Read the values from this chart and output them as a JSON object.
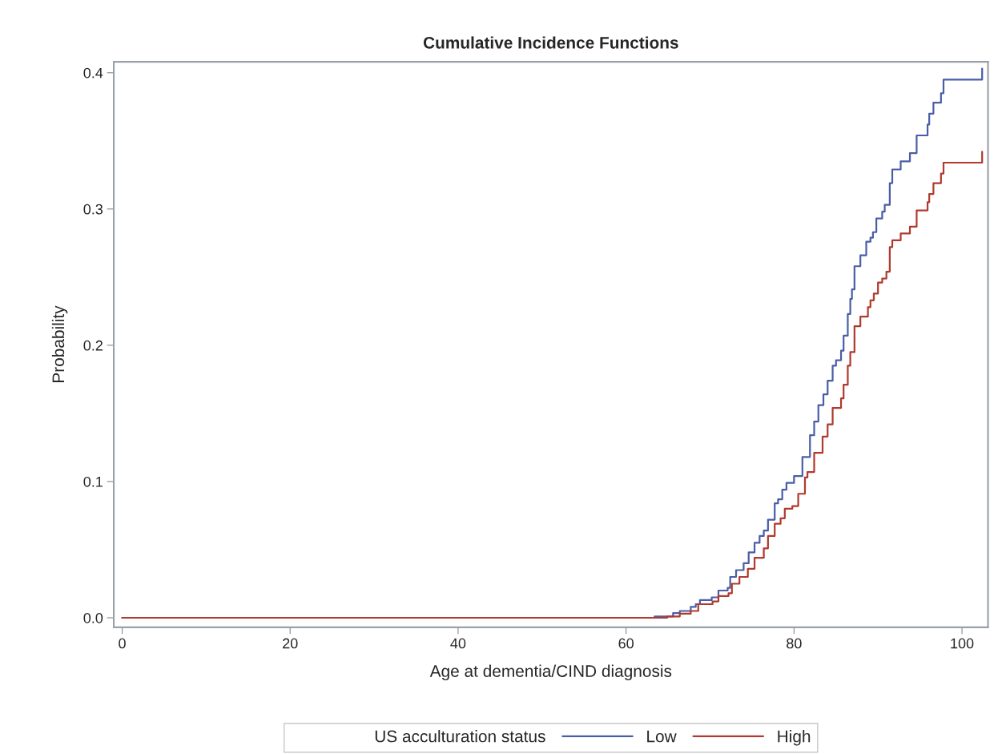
{
  "chart_data": {
    "type": "step",
    "title": "Cumulative Incidence Functions",
    "xlabel": "Age at dementia/CIND diagnosis",
    "ylabel": "Probability",
    "legend_title": "US acculturation status",
    "xlim": [
      -1,
      103.1
    ],
    "ylim": [
      -0.007,
      0.408
    ],
    "xticks": [
      0,
      20,
      40,
      60,
      80,
      100
    ],
    "yticks": [
      {
        "value": 0,
        "label": "0.0"
      },
      {
        "value": 0.1,
        "label": "0.1"
      },
      {
        "value": 0.2,
        "label": "0.2"
      },
      {
        "value": 0.3,
        "label": "0.3"
      },
      {
        "value": 0.4,
        "label": "0.4"
      }
    ],
    "grid": false,
    "legend": "bottom",
    "line_style": "solid",
    "marker": "none",
    "series": [
      {
        "name": "Low",
        "color": "#4a5ea8",
        "x": [
          0,
          63.4,
          65.6,
          66.4,
          67.7,
          68.3,
          68.8,
          70.2,
          71.0,
          72.1,
          72.4,
          73.1,
          74.0,
          74.6,
          75.3,
          75.9,
          76.4,
          76.9,
          77.7,
          78.1,
          78.6,
          79.1,
          80.0,
          81.0,
          81.9,
          82.4,
          82.9,
          83.5,
          84.0,
          84.6,
          85.0,
          85.6,
          85.9,
          86.4,
          86.7,
          86.9,
          87.2,
          87.9,
          88.6,
          89.1,
          89.4,
          89.8,
          90.5,
          90.8,
          91.4,
          91.7,
          92.7,
          93.8,
          94.6,
          95.9,
          96.1,
          96.6,
          97.5,
          97.8,
          102.4
        ],
        "values": [
          0,
          0.001,
          0.0035,
          0.005,
          0.008,
          0.01,
          0.013,
          0.015,
          0.02,
          0.022,
          0.03,
          0.035,
          0.04,
          0.048,
          0.055,
          0.06,
          0.064,
          0.072,
          0.084,
          0.087,
          0.094,
          0.099,
          0.104,
          0.118,
          0.134,
          0.144,
          0.156,
          0.164,
          0.174,
          0.185,
          0.189,
          0.196,
          0.207,
          0.223,
          0.234,
          0.241,
          0.258,
          0.266,
          0.276,
          0.279,
          0.283,
          0.293,
          0.298,
          0.303,
          0.319,
          0.329,
          0.335,
          0.341,
          0.354,
          0.362,
          0.37,
          0.378,
          0.385,
          0.395,
          0.403
        ]
      },
      {
        "name": "High",
        "color": "#b03a2e",
        "x": [
          0,
          64.9,
          66.4,
          67.7,
          68.6,
          70.3,
          71.0,
          72.2,
          72.6,
          73.5,
          74.5,
          75.3,
          76.4,
          76.9,
          77.7,
          78.4,
          78.9,
          79.8,
          80.5,
          81.3,
          81.6,
          82.4,
          83.4,
          84.0,
          84.6,
          85.6,
          85.9,
          86.4,
          86.7,
          87.2,
          87.9,
          88.8,
          89.1,
          89.5,
          90.0,
          90.5,
          91.0,
          91.4,
          91.7,
          92.7,
          93.8,
          94.6,
          95.9,
          96.1,
          96.6,
          97.5,
          97.8,
          102.4
        ],
        "values": [
          0,
          0.001,
          0.003,
          0.005,
          0.01,
          0.012,
          0.016,
          0.018,
          0.025,
          0.03,
          0.036,
          0.044,
          0.051,
          0.06,
          0.069,
          0.073,
          0.08,
          0.082,
          0.091,
          0.103,
          0.107,
          0.121,
          0.133,
          0.142,
          0.154,
          0.161,
          0.171,
          0.185,
          0.195,
          0.214,
          0.221,
          0.228,
          0.233,
          0.238,
          0.246,
          0.249,
          0.254,
          0.272,
          0.277,
          0.282,
          0.287,
          0.299,
          0.305,
          0.311,
          0.319,
          0.326,
          0.334,
          0.342
        ]
      }
    ]
  }
}
